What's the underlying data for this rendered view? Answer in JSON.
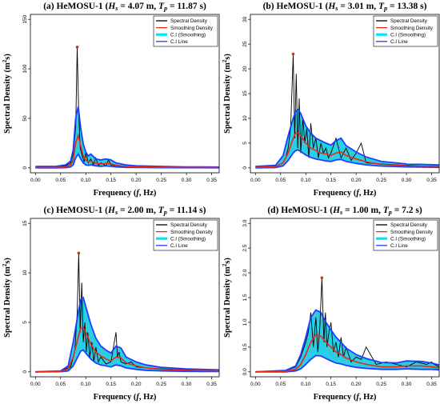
{
  "chart_data": [
    {
      "type": "line",
      "title_main": "(a) HeMOSU-1 (",
      "hs": "4.07 m",
      "tp": "11.87 s",
      "xlabel": "Frequency (f, Hz)",
      "ylabel": "Spectral Density (m²s)",
      "xlim": [
        -0.01,
        0.365
      ],
      "ylim": [
        -5,
        155
      ],
      "xticks": [
        "0.00",
        "0.05",
        "0.10",
        "0.15",
        "0.20",
        "0.25",
        "0.30",
        "0.35"
      ],
      "yticks": [
        "0",
        "50",
        "100",
        "150"
      ],
      "legend_position": "top-right",
      "series": [
        {
          "name": "Spectral Density",
          "color": "#000000",
          "x": [
            0.0,
            0.03,
            0.06,
            0.07,
            0.075,
            0.08,
            0.083,
            0.086,
            0.089,
            0.093,
            0.097,
            0.1,
            0.105,
            0.11,
            0.115,
            0.12,
            0.125,
            0.13,
            0.14,
            0.145,
            0.15,
            0.16,
            0.18,
            0.2,
            0.25,
            0.3,
            0.35,
            0.365
          ],
          "values": [
            0.5,
            0.8,
            2,
            5,
            14,
            40,
            122,
            55,
            20,
            12,
            6,
            15,
            5,
            9,
            3,
            10,
            2,
            5,
            2,
            8,
            3,
            2,
            1.5,
            1,
            0.8,
            0.5,
            0.3,
            0.3
          ]
        },
        {
          "name": "Smoothing Density",
          "color": "#e8291c",
          "x": [
            0.0,
            0.04,
            0.06,
            0.07,
            0.075,
            0.08,
            0.085,
            0.09,
            0.095,
            0.1,
            0.105,
            0.11,
            0.12,
            0.13,
            0.14,
            0.15,
            0.16,
            0.18,
            0.2,
            0.25,
            0.3,
            0.365
          ],
          "values": [
            0.3,
            0.3,
            1,
            3,
            8,
            25,
            33,
            22,
            12,
            8,
            6,
            7,
            4.5,
            4,
            4.5,
            4,
            2.5,
            1.5,
            1,
            0.6,
            0.4,
            0.3
          ]
        },
        {
          "name": "C.I (Smoothing) upper",
          "color": "#00e5ff",
          "x": [
            0.0,
            0.04,
            0.06,
            0.07,
            0.075,
            0.08,
            0.085,
            0.09,
            0.095,
            0.1,
            0.105,
            0.11,
            0.12,
            0.13,
            0.14,
            0.15,
            0.16,
            0.18,
            0.2,
            0.25,
            0.3,
            0.365
          ],
          "values": [
            1.5,
            1.5,
            3,
            7,
            18,
            50,
            62,
            40,
            24,
            16,
            12,
            14,
            9,
            8,
            9,
            8,
            5,
            3,
            2,
            1.5,
            1,
            0.8
          ]
        },
        {
          "name": "C.I (Smoothing) lower",
          "color": "#00e5ff",
          "x": [
            0.0,
            0.04,
            0.06,
            0.07,
            0.075,
            0.08,
            0.085,
            0.09,
            0.095,
            0.1,
            0.105,
            0.11,
            0.12,
            0.13,
            0.14,
            0.15,
            0.16,
            0.18,
            0.2,
            0.25,
            0.3,
            0.365
          ],
          "values": [
            0,
            0,
            0.2,
            1,
            3,
            10,
            14,
            9,
            5,
            3,
            2.5,
            3,
            2,
            1.5,
            2,
            1.5,
            1,
            0.5,
            0.3,
            0.2,
            0.1,
            0
          ]
        }
      ],
      "peak": {
        "x": 0.083,
        "y": 122
      }
    },
    {
      "type": "line",
      "title_main": "(b) HeMOSU-1 (",
      "hs": "3.01 m",
      "tp": "13.38 s",
      "xlabel": "Frequency (f, Hz)",
      "ylabel": "Spectral Density (m²s)",
      "xlim": [
        -0.01,
        0.365
      ],
      "ylim": [
        -1,
        31
      ],
      "xticks": [
        "0.00",
        "0.05",
        "0.10",
        "0.15",
        "0.20",
        "0.25",
        "0.30",
        "0.35"
      ],
      "yticks": [
        "0",
        "5",
        "10",
        "15",
        "20",
        "25",
        "30"
      ],
      "legend_position": "top-right",
      "series": [
        {
          "name": "Spectral Density",
          "color": "#000000",
          "x": [
            0.0,
            0.04,
            0.055,
            0.06,
            0.065,
            0.07,
            0.075,
            0.078,
            0.081,
            0.084,
            0.087,
            0.09,
            0.094,
            0.098,
            0.102,
            0.106,
            0.11,
            0.115,
            0.12,
            0.125,
            0.13,
            0.135,
            0.14,
            0.145,
            0.15,
            0.16,
            0.17,
            0.18,
            0.19,
            0.2,
            0.21,
            0.22,
            0.25,
            0.3,
            0.35,
            0.365
          ],
          "values": [
            0.1,
            0.3,
            1,
            2,
            4,
            8,
            23,
            6,
            19,
            4,
            14,
            3,
            10,
            5,
            8,
            2,
            9,
            4,
            6,
            2,
            5,
            3,
            4,
            2,
            3,
            6,
            2,
            4,
            1.5,
            3,
            5,
            1,
            0.8,
            0.5,
            0.3,
            0.3
          ]
        },
        {
          "name": "Smoothing Density",
          "color": "#e8291c",
          "x": [
            0.0,
            0.04,
            0.055,
            0.065,
            0.075,
            0.08,
            0.085,
            0.09,
            0.1,
            0.11,
            0.12,
            0.13,
            0.14,
            0.15,
            0.16,
            0.17,
            0.18,
            0.2,
            0.22,
            0.25,
            0.3,
            0.365
          ],
          "values": [
            0.1,
            0.2,
            1,
            3,
            6,
            7,
            7,
            6.5,
            5,
            4,
            3.5,
            3,
            2.8,
            2.5,
            3,
            3.2,
            2.5,
            1.8,
            1.2,
            0.7,
            0.4,
            0.3
          ]
        },
        {
          "name": "C.I (Smoothing) upper",
          "color": "#00e5ff",
          "x": [
            0.0,
            0.04,
            0.055,
            0.065,
            0.075,
            0.08,
            0.085,
            0.09,
            0.1,
            0.11,
            0.12,
            0.13,
            0.14,
            0.15,
            0.16,
            0.17,
            0.18,
            0.2,
            0.22,
            0.25,
            0.3,
            0.365
          ],
          "values": [
            0.3,
            0.5,
            2.5,
            6.5,
            10,
            11.5,
            11.8,
            11,
            8.5,
            7,
            6,
            5.5,
            5,
            4.6,
            5.5,
            6,
            4.5,
            3.2,
            2.2,
            1.3,
            0.8,
            0.6
          ]
        },
        {
          "name": "C.I (Smoothing) lower",
          "color": "#00e5ff",
          "x": [
            0.0,
            0.04,
            0.055,
            0.065,
            0.075,
            0.08,
            0.085,
            0.09,
            0.1,
            0.11,
            0.12,
            0.13,
            0.14,
            0.15,
            0.16,
            0.17,
            0.18,
            0.2,
            0.22,
            0.25,
            0.3,
            0.365
          ],
          "values": [
            0,
            0.05,
            0.4,
            1.5,
            3,
            3.5,
            3.6,
            3.3,
            2.6,
            2.1,
            1.8,
            1.6,
            1.4,
            1.3,
            1.6,
            1.7,
            1.3,
            0.9,
            0.6,
            0.35,
            0.2,
            0.1
          ]
        }
      ],
      "peak": {
        "x": 0.075,
        "y": 23
      }
    },
    {
      "type": "line",
      "title_main": "(c) HeMOSU-1 (",
      "hs": "2.00 m",
      "tp": "11.14 s",
      "xlabel": "Frequency (f, Hz)",
      "ylabel": "Spectral Density (m²s)",
      "xlim": [
        -0.01,
        0.365
      ],
      "ylim": [
        -0.5,
        15.5
      ],
      "xticks": [
        "0.00",
        "0.05",
        "0.10",
        "0.15",
        "0.20",
        "0.25",
        "0.30",
        "0.35"
      ],
      "yticks": [
        "0",
        "5",
        "10",
        "15"
      ],
      "legend_position": "top-right",
      "series": [
        {
          "name": "Spectral Density",
          "color": "#000000",
          "x": [
            0.0,
            0.05,
            0.07,
            0.078,
            0.083,
            0.086,
            0.089,
            0.092,
            0.095,
            0.098,
            0.101,
            0.104,
            0.108,
            0.112,
            0.116,
            0.12,
            0.125,
            0.13,
            0.14,
            0.15,
            0.16,
            0.163,
            0.166,
            0.17,
            0.18,
            0.19,
            0.2,
            0.22,
            0.25,
            0.3,
            0.365
          ],
          "values": [
            0,
            0.1,
            0.5,
            2,
            6,
            12,
            4,
            9,
            3,
            5,
            2,
            4,
            1.5,
            3,
            1,
            2.5,
            1,
            1.5,
            0.8,
            1,
            4,
            1.5,
            2,
            1,
            0.8,
            1,
            0.5,
            0.4,
            0.3,
            0.2,
            0.1
          ]
        },
        {
          "name": "Smoothing Density",
          "color": "#e8291c",
          "x": [
            0.0,
            0.05,
            0.065,
            0.075,
            0.085,
            0.09,
            0.095,
            0.1,
            0.11,
            0.12,
            0.13,
            0.14,
            0.15,
            0.16,
            0.17,
            0.18,
            0.2,
            0.22,
            0.25,
            0.3,
            0.365
          ],
          "values": [
            0,
            0.05,
            0.3,
            1.5,
            3.5,
            4.4,
            4.5,
            4,
            2.8,
            2,
            1.6,
            1.3,
            1.1,
            1.5,
            1.4,
            0.9,
            0.6,
            0.4,
            0.25,
            0.15,
            0.1
          ]
        },
        {
          "name": "C.I (Smoothing) upper",
          "color": "#00e5ff",
          "x": [
            0.0,
            0.05,
            0.065,
            0.075,
            0.085,
            0.09,
            0.095,
            0.1,
            0.11,
            0.12,
            0.13,
            0.14,
            0.15,
            0.16,
            0.17,
            0.18,
            0.2,
            0.22,
            0.25,
            0.3,
            0.365
          ],
          "values": [
            0,
            0.1,
            0.6,
            3,
            6,
            7.3,
            7.5,
            6.6,
            4.8,
            3.4,
            2.6,
            2.2,
            1.9,
            2.6,
            2.4,
            1.5,
            1,
            0.7,
            0.45,
            0.3,
            0.2
          ]
        },
        {
          "name": "C.I (Smoothing) lower",
          "color": "#00e5ff",
          "x": [
            0.0,
            0.05,
            0.065,
            0.075,
            0.085,
            0.09,
            0.095,
            0.1,
            0.11,
            0.12,
            0.13,
            0.14,
            0.15,
            0.16,
            0.17,
            0.18,
            0.2,
            0.22,
            0.25,
            0.3,
            0.365
          ],
          "values": [
            0,
            0.02,
            0.1,
            0.6,
            1.6,
            2.1,
            2.2,
            1.9,
            1.3,
            0.9,
            0.7,
            0.6,
            0.5,
            0.7,
            0.6,
            0.4,
            0.25,
            0.15,
            0.1,
            0.05,
            0.03
          ]
        }
      ],
      "peak": {
        "x": 0.086,
        "y": 12
      }
    },
    {
      "type": "line",
      "title_main": "(d) HeMOSU-1 (",
      "hs": "1.00 m",
      "tp": "7.2 s",
      "xlabel": "Frequency (f, Hz)",
      "ylabel": "Spectral Density (m²s)",
      "xlim": [
        -0.01,
        0.365
      ],
      "ylim": [
        -0.1,
        3.1
      ],
      "xticks": [
        "0.00",
        "0.05",
        "0.10",
        "0.15",
        "0.20",
        "0.25",
        "0.30",
        "0.35"
      ],
      "yticks": [
        "0.0",
        "0.5",
        "1.0",
        "1.5",
        "2.0",
        "2.5",
        "3.0"
      ],
      "legend_position": "top-right",
      "series": [
        {
          "name": "Spectral Density",
          "color": "#000000",
          "x": [
            0.0,
            0.06,
            0.08,
            0.09,
            0.1,
            0.105,
            0.11,
            0.115,
            0.12,
            0.124,
            0.128,
            0.132,
            0.136,
            0.139,
            0.142,
            0.146,
            0.15,
            0.155,
            0.16,
            0.165,
            0.17,
            0.175,
            0.18,
            0.19,
            0.2,
            0.21,
            0.22,
            0.24,
            0.26,
            0.28,
            0.3,
            0.32,
            0.34,
            0.35,
            0.355,
            0.365
          ],
          "values": [
            0,
            0.02,
            0.1,
            0.3,
            0.6,
            0.8,
            1.2,
            0.5,
            1.1,
            0.4,
            0.9,
            1.9,
            0.6,
            1.2,
            0.5,
            0.8,
            1,
            0.4,
            0.6,
            0.3,
            0.7,
            0.3,
            0.5,
            0.2,
            0.3,
            0.25,
            0.5,
            0.15,
            0.2,
            0.15,
            0.1,
            0.2,
            0.15,
            0.2,
            0.15,
            0.1
          ]
        },
        {
          "name": "Smoothing Density",
          "color": "#e8291c",
          "x": [
            0.0,
            0.06,
            0.08,
            0.09,
            0.1,
            0.11,
            0.12,
            0.13,
            0.14,
            0.15,
            0.16,
            0.17,
            0.18,
            0.2,
            0.22,
            0.25,
            0.28,
            0.3,
            0.33,
            0.35,
            0.365
          ],
          "values": [
            0,
            0.01,
            0.05,
            0.15,
            0.35,
            0.6,
            0.75,
            0.72,
            0.6,
            0.5,
            0.4,
            0.35,
            0.28,
            0.2,
            0.15,
            0.1,
            0.1,
            0.12,
            0.12,
            0.1,
            0.08
          ]
        },
        {
          "name": "C.I (Smoothing) upper",
          "color": "#00e5ff",
          "x": [
            0.0,
            0.06,
            0.08,
            0.09,
            0.1,
            0.11,
            0.12,
            0.13,
            0.14,
            0.15,
            0.16,
            0.17,
            0.18,
            0.2,
            0.22,
            0.25,
            0.28,
            0.3,
            0.33,
            0.35,
            0.365
          ],
          "values": [
            0,
            0.03,
            0.12,
            0.35,
            0.7,
            1.1,
            1.25,
            1.2,
            1,
            0.85,
            0.7,
            0.6,
            0.48,
            0.35,
            0.27,
            0.19,
            0.18,
            0.22,
            0.21,
            0.18,
            0.14
          ]
        },
        {
          "name": "C.I (Smoothing) lower",
          "color": "#00e5ff",
          "x": [
            0.0,
            0.06,
            0.08,
            0.09,
            0.1,
            0.11,
            0.12,
            0.13,
            0.14,
            0.15,
            0.16,
            0.17,
            0.18,
            0.2,
            0.22,
            0.25,
            0.28,
            0.3,
            0.33,
            0.35,
            0.365
          ],
          "values": [
            0,
            0,
            0.02,
            0.06,
            0.15,
            0.25,
            0.33,
            0.32,
            0.27,
            0.22,
            0.18,
            0.16,
            0.13,
            0.09,
            0.07,
            0.05,
            0.05,
            0.06,
            0.05,
            0.05,
            0.04
          ]
        }
      ],
      "peak": {
        "x": 0.132,
        "y": 1.9
      }
    }
  ],
  "legend": {
    "items": [
      {
        "label": "Spectral Density",
        "color": "#000000"
      },
      {
        "label": "Smoothing Density",
        "color": "#e8291c"
      },
      {
        "label": "C.I (Smoothing)",
        "color": "#00e5ff"
      },
      {
        "label": "C.I Line",
        "color": "#1f3fff"
      }
    ]
  },
  "colors": {
    "ci_fill": "#00e5ff",
    "ci_line": "#1f3fff",
    "smooth": "#e8291c",
    "spectral": "#000000",
    "peak": "#e8291c"
  }
}
